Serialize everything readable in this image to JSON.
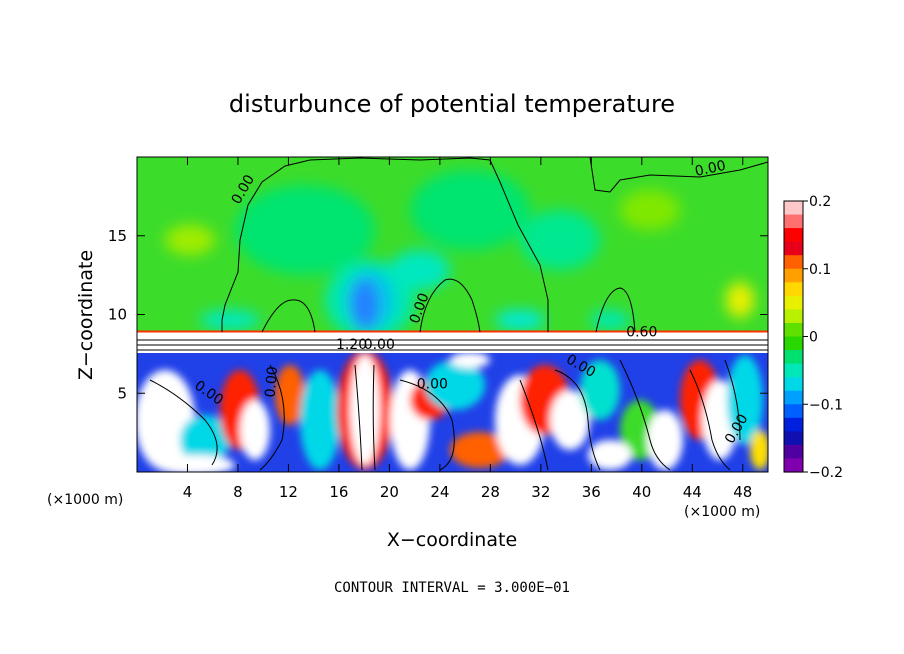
{
  "chart_data": {
    "type": "heatmap",
    "title": "disturbunce of potential temperature",
    "xlabel": "X−coordinate",
    "ylabel": "Z−coordinate",
    "x_unit_left": "(×1000 m)",
    "x_unit_right": "(×1000 m)",
    "footer": "CONTOUR INTERVAL = 3.000E−01",
    "xlim": [
      0,
      50
    ],
    "ylim": [
      0,
      20
    ],
    "x_ticks": [
      4,
      8,
      12,
      16,
      20,
      24,
      28,
      32,
      36,
      40,
      44,
      48
    ],
    "y_ticks": [
      5,
      10,
      15
    ],
    "colorbar": {
      "min": -0.2,
      "max": 0.2,
      "ticks": [
        "0.2",
        "0.1",
        "0",
        "−0.1",
        "−0.2"
      ],
      "tick_values": [
        0.2,
        0.1,
        0,
        -0.1,
        -0.2
      ],
      "colors": [
        "#ffc8c8",
        "#ff7070",
        "#ff0000",
        "#e8001a",
        "#ff6000",
        "#ffa000",
        "#ffd800",
        "#e8f000",
        "#b8f000",
        "#60e000",
        "#28d800",
        "#00e070",
        "#00e8b8",
        "#00d8e8",
        "#00a0ff",
        "#0060ff",
        "#0020e0",
        "#1010b0",
        "#5000a0",
        "#8000b0"
      ]
    },
    "contour_labels": [
      {
        "text": "0.00",
        "x": 8.7,
        "y": 17.8,
        "rotate": -60
      },
      {
        "text": "0.00",
        "x": 45.5,
        "y": 19.0,
        "rotate": -12
      },
      {
        "text": "0.00",
        "x": 22.7,
        "y": 10.3,
        "rotate": -70
      },
      {
        "text": "0.60",
        "x": 40.0,
        "y": 8.6,
        "rotate": 0
      },
      {
        "text": "1.20",
        "x": 17.0,
        "y": 7.8,
        "rotate": 0
      },
      {
        "text": "0.00",
        "x": 19.2,
        "y": 7.8,
        "rotate": 0
      },
      {
        "text": "0.00",
        "x": 5.5,
        "y": 4.8,
        "rotate": 35
      },
      {
        "text": "0.00",
        "x": 23.4,
        "y": 5.3,
        "rotate": 0
      },
      {
        "text": "0.00",
        "x": 35.0,
        "y": 6.5,
        "rotate": 30
      },
      {
        "text": "0.00",
        "x": 47.8,
        "y": 2.6,
        "rotate": -60
      },
      {
        "text": "0.00",
        "x": 11.0,
        "y": 5.7,
        "rotate": -85
      }
    ]
  }
}
